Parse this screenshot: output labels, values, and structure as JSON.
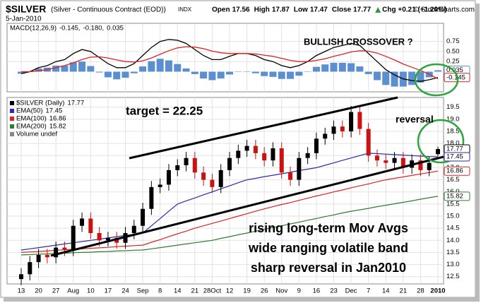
{
  "header": {
    "symbol": "$SILVER",
    "description": "(Silver - Continuous Contract (EOD))",
    "exchange": "INDX",
    "date": "5-Jan-2010",
    "quote_labels": [
      "Open",
      "High",
      "Low",
      "Close"
    ],
    "change": "Chg +0.21 (+1.20%)",
    "credit": "© StockCharts.com"
  },
  "chart_data": [
    {
      "type": "macd",
      "label": "MACD(12,26,9)",
      "legend_values": [
        "-0.145,",
        "-0.180,",
        "0.035"
      ],
      "ylim": [
        -0.5,
        1.2
      ],
      "yticks": [
        0.75,
        {
          "value": 0.5,
          "label": "0.50"
        },
        0.25
      ],
      "grid": true,
      "series": [
        {
          "color": "#000000",
          "values": [
            -0.05,
            0.0,
            0.1,
            0.15,
            0.25,
            0.3,
            0.45,
            0.55,
            0.5,
            0.35,
            0.2,
            0.1,
            0.1,
            0.2,
            0.4,
            0.6,
            0.75,
            0.8,
            0.78,
            0.7,
            0.55,
            0.4,
            0.3,
            0.3,
            0.38,
            0.45,
            0.45,
            0.4,
            0.3,
            0.25,
            0.15,
            0.1,
            0.15,
            0.25,
            0.4,
            0.5,
            0.6,
            0.65,
            0.7,
            0.65,
            0.45,
            0.25,
            0.05,
            -0.08,
            -0.18,
            -0.22,
            -0.24,
            -0.2,
            -0.145
          ]
        },
        {
          "color": "#dd2222",
          "values": [
            0.0,
            0.0,
            0.02,
            0.05,
            0.1,
            0.15,
            0.22,
            0.3,
            0.36,
            0.37,
            0.34,
            0.29,
            0.25,
            0.24,
            0.27,
            0.34,
            0.43,
            0.52,
            0.59,
            0.62,
            0.61,
            0.57,
            0.51,
            0.47,
            0.45,
            0.45,
            0.45,
            0.44,
            0.41,
            0.38,
            0.33,
            0.28,
            0.25,
            0.25,
            0.28,
            0.32,
            0.38,
            0.43,
            0.49,
            0.52,
            0.51,
            0.46,
            0.38,
            0.29,
            0.19,
            0.11,
            0.03,
            -0.06,
            -0.18
          ]
        }
      ],
      "histogram": {
        "color": "#5b8fd0",
        "values": [
          -0.05,
          0.0,
          0.08,
          0.1,
          0.15,
          0.15,
          0.23,
          0.25,
          0.14,
          -0.02,
          -0.14,
          -0.19,
          -0.15,
          -0.04,
          0.13,
          0.26,
          0.32,
          0.28,
          0.19,
          0.08,
          -0.06,
          -0.17,
          -0.21,
          -0.17,
          -0.07,
          0.0,
          0.0,
          -0.04,
          -0.11,
          -0.13,
          -0.18,
          -0.18,
          -0.1,
          0.0,
          0.12,
          0.18,
          0.22,
          0.22,
          0.21,
          0.13,
          -0.06,
          -0.21,
          -0.33,
          -0.37,
          -0.37,
          -0.33,
          -0.27,
          -0.14,
          0.035
        ]
      },
      "annotations": [
        {
          "text": "BULLISH CROSSOVER ?",
          "color": "#dd1111"
        }
      ]
    },
    {
      "type": "candlestick",
      "name": "$SILVER (Daily)",
      "categories": [
        "13",
        null,
        "20",
        null,
        "27",
        null,
        "Aug",
        null,
        "10",
        null,
        "17",
        null,
        "24",
        null,
        "Sep",
        null,
        "8",
        null,
        "14",
        null,
        "21",
        null,
        "28Oct",
        null,
        "12",
        null,
        "19",
        null,
        "26",
        null,
        "Nov",
        null,
        "9",
        null,
        "16",
        null,
        "23",
        null,
        "Dec",
        null,
        "7",
        null,
        "14",
        null,
        "21",
        null,
        "28",
        null,
        "2010"
      ],
      "open": [
        12.4,
        12.6,
        13.1,
        13.4,
        13.3,
        13.7,
        13.6,
        14.6,
        14.9,
        14.3,
        14.0,
        14.1,
        13.9,
        14.3,
        14.6,
        15.3,
        16.2,
        16.3,
        16.9,
        17.1,
        17.4,
        16.8,
        16.5,
        16.2,
        16.9,
        17.4,
        17.7,
        17.9,
        17.6,
        17.3,
        17.8,
        16.8,
        16.5,
        17.4,
        17.6,
        18.2,
        18.4,
        18.7,
        18.5,
        19.3,
        18.6,
        17.5,
        17.3,
        17.2,
        17.4,
        17.0,
        17.3,
        16.9,
        17.56
      ],
      "high": [
        12.85,
        13.35,
        13.65,
        13.65,
        13.95,
        13.95,
        14.85,
        15.15,
        15.15,
        14.55,
        14.35,
        14.35,
        14.55,
        14.85,
        15.55,
        16.45,
        16.55,
        17.15,
        17.35,
        17.65,
        17.65,
        17.05,
        16.75,
        17.15,
        17.65,
        17.95,
        18.15,
        18.15,
        17.85,
        18.05,
        18.05,
        17.05,
        17.65,
        17.85,
        18.45,
        18.65,
        18.95,
        18.95,
        19.55,
        19.55,
        18.85,
        17.75,
        17.55,
        17.65,
        17.65,
        17.55,
        17.55,
        17.45,
        17.87
      ],
      "low": [
        12.15,
        12.35,
        12.85,
        13.05,
        13.05,
        13.35,
        13.35,
        14.35,
        14.05,
        13.75,
        13.75,
        13.65,
        13.65,
        14.05,
        14.35,
        15.05,
        15.95,
        16.05,
        16.65,
        16.85,
        16.55,
        16.25,
        15.95,
        15.95,
        16.65,
        17.15,
        17.45,
        17.35,
        17.05,
        17.05,
        16.55,
        16.25,
        16.25,
        17.15,
        17.35,
        17.95,
        18.15,
        18.25,
        18.25,
        18.35,
        17.25,
        17.05,
        16.95,
        16.95,
        16.75,
        16.75,
        16.65,
        16.65,
        17.47
      ],
      "close": [
        12.6,
        13.1,
        13.4,
        13.3,
        13.7,
        13.6,
        14.6,
        14.9,
        14.3,
        14.0,
        14.1,
        13.9,
        14.3,
        14.6,
        15.3,
        16.2,
        16.3,
        16.9,
        17.1,
        17.4,
        16.8,
        16.5,
        16.2,
        16.9,
        17.4,
        17.7,
        17.9,
        17.6,
        17.3,
        17.8,
        16.8,
        16.5,
        17.4,
        17.6,
        18.2,
        18.4,
        18.7,
        18.5,
        19.3,
        18.6,
        17.5,
        17.3,
        17.2,
        17.4,
        17.0,
        17.3,
        16.9,
        17.2,
        17.77
      ],
      "up_color": "#000000",
      "down_color": "#cc1111",
      "series": [
        {
          "name": "EMA(50)",
          "color": "#2b2bb0",
          "values": [
            13.6,
            13.65,
            13.7,
            13.75,
            13.8,
            13.85,
            13.9,
            13.95,
            14.0,
            14.05,
            14.1,
            14.15,
            14.2,
            14.25,
            14.3,
            14.6,
            14.9,
            15.2,
            15.5,
            15.63,
            15.75,
            15.88,
            16.0,
            16.13,
            16.25,
            16.38,
            16.5,
            16.56,
            16.63,
            16.69,
            16.75,
            16.81,
            16.88,
            16.94,
            17.0,
            17.1,
            17.2,
            17.3,
            17.4,
            17.5,
            17.6,
            17.58,
            17.56,
            17.54,
            17.52,
            17.5,
            17.48,
            17.46,
            17.45
          ]
        },
        {
          "name": "EMA(100)",
          "color": "#dd2222",
          "values": [
            13.5,
            13.52,
            13.54,
            13.56,
            13.59,
            13.61,
            13.63,
            13.65,
            13.67,
            13.69,
            13.71,
            13.74,
            13.76,
            13.78,
            13.8,
            13.92,
            14.03,
            14.15,
            14.27,
            14.38,
            14.5,
            14.6,
            14.7,
            14.8,
            14.9,
            15.0,
            15.1,
            15.2,
            15.3,
            15.39,
            15.48,
            15.56,
            15.65,
            15.74,
            15.83,
            15.91,
            16.0,
            16.08,
            16.17,
            16.25,
            16.33,
            16.42,
            16.5,
            16.56,
            16.62,
            16.68,
            16.74,
            16.8,
            16.86
          ]
        },
        {
          "name": "EMA(200)",
          "color": "#2e7d32",
          "values": [
            13.4,
            13.41,
            13.43,
            13.44,
            13.46,
            13.47,
            13.49,
            13.5,
            13.51,
            13.53,
            13.54,
            13.56,
            13.57,
            13.59,
            13.6,
            13.65,
            13.7,
            13.75,
            13.8,
            13.85,
            13.9,
            13.95,
            14.0,
            14.08,
            14.15,
            14.23,
            14.3,
            14.38,
            14.45,
            14.53,
            14.6,
            14.68,
            14.75,
            14.83,
            14.9,
            14.98,
            15.05,
            15.13,
            15.2,
            15.26,
            15.32,
            15.39,
            15.45,
            15.51,
            15.57,
            15.63,
            15.7,
            15.76,
            15.82
          ]
        }
      ],
      "legend_extra": "Volume undef",
      "ylim": [
        12.2,
        19.9
      ],
      "yticks": [
        12.5,
        {
          "value": 13,
          "label": "13.0"
        },
        13.5,
        {
          "value": 14,
          "label": "14.0"
        },
        14.5,
        {
          "value": 15,
          "label": "15.0"
        },
        15.5,
        {
          "value": 16,
          "label": "16.0"
        },
        16.5,
        {
          "value": 17,
          "label": "17.0"
        },
        17.5,
        {
          "value": 18,
          "label": "18.0"
        },
        18.5,
        {
          "value": 19,
          "label": "19.0"
        },
        19.5
      ],
      "grid": true,
      "annotations": [
        {
          "text": "target = 22.25",
          "color": "#2b3fb8"
        },
        {
          "text": "reversal",
          "color": "#2e9a3a"
        },
        {
          "text": "rising long-term Mov Avgs",
          "color": "#3a4dbf"
        },
        {
          "text": "wide ranging volatile band",
          "color": "#3a4dbf"
        },
        {
          "text": "sharp reversal in Jan2010",
          "color": "#3a4dbf"
        }
      ]
    }
  ]
}
